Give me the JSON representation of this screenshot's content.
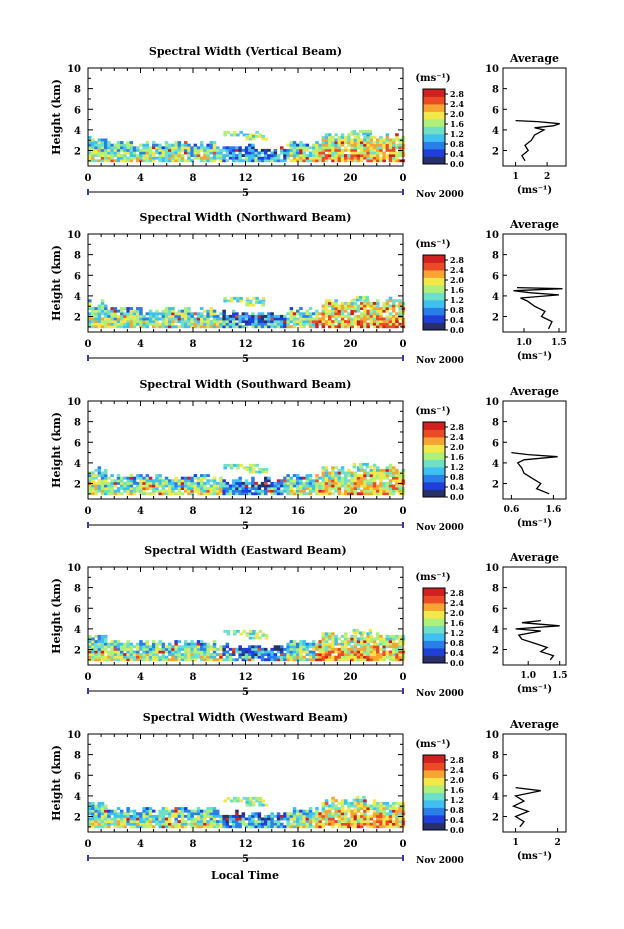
{
  "x_axis_label": "Local Time",
  "date_label": "Nov 2000",
  "day_marker": "5",
  "height_label": "Height (km)",
  "avg_title": "Average",
  "avg_unit": "(ms⁻¹)",
  "colorbar_unit": "(ms⁻¹)",
  "colorbar_ticks": [
    "2.8",
    "2.4",
    "2.0",
    "1.6",
    "1.2",
    "0.8",
    "0.4",
    "0.0"
  ],
  "colors": {
    "colormap": [
      "#28306c",
      "#1f3fd8",
      "#2a7ee8",
      "#3fc0f0",
      "#6fe0c8",
      "#aef07a",
      "#f3e84a",
      "#f7a433",
      "#ea4a25",
      "#d02020"
    ]
  },
  "chart_data": [
    {
      "type": "heatmap",
      "title": "Spectral Width (Vertical Beam)",
      "xticks": [
        "0",
        "4",
        "8",
        "12",
        "16",
        "20",
        "0"
      ],
      "yticks": [
        "2",
        "4",
        "6",
        "8",
        "10"
      ],
      "xlim": [
        0,
        24
      ],
      "ylim": [
        0.5,
        10
      ],
      "colorbar_range": [
        0,
        3.0
      ],
      "avg_xticks": [
        "1",
        "2"
      ],
      "avg_xlim": [
        0.6,
        2.6
      ],
      "avg_profile": [
        [
          1.3,
          1
        ],
        [
          1.2,
          1.5
        ],
        [
          1.4,
          2
        ],
        [
          1.3,
          2.5
        ],
        [
          1.5,
          3
        ],
        [
          1.6,
          3.5
        ],
        [
          1.9,
          4.0
        ],
        [
          1.6,
          4.2
        ],
        [
          2.2,
          4.4
        ],
        [
          2.4,
          4.6
        ],
        [
          1.7,
          4.8
        ],
        [
          1.0,
          4.9
        ]
      ]
    },
    {
      "type": "heatmap",
      "title": "Spectral Width (Northward Beam)",
      "xticks": [
        "0",
        "4",
        "8",
        "12",
        "16",
        "20",
        "0"
      ],
      "yticks": [
        "2",
        "4",
        "6",
        "8",
        "10"
      ],
      "xlim": [
        0,
        24
      ],
      "ylim": [
        0.5,
        10
      ],
      "colorbar_range": [
        0,
        3.0
      ],
      "avg_xticks": [
        "1.0",
        "1.5"
      ],
      "avg_xlim": [
        0.7,
        1.6
      ],
      "avg_profile": [
        [
          1.35,
          0.8
        ],
        [
          1.4,
          1.5
        ],
        [
          1.25,
          2.0
        ],
        [
          1.3,
          2.5
        ],
        [
          1.15,
          3.0
        ],
        [
          1.05,
          3.5
        ],
        [
          0.95,
          3.8
        ],
        [
          1.5,
          4.1
        ],
        [
          1.1,
          4.3
        ],
        [
          0.85,
          4.5
        ],
        [
          1.55,
          4.7
        ],
        [
          0.9,
          4.8
        ]
      ]
    },
    {
      "type": "heatmap",
      "title": "Spectral Width (Southward Beam)",
      "xticks": [
        "0",
        "4",
        "8",
        "12",
        "16",
        "20",
        "0"
      ],
      "yticks": [
        "2",
        "4",
        "6",
        "8",
        "10"
      ],
      "xlim": [
        0,
        24
      ],
      "ylim": [
        0.5,
        10
      ],
      "colorbar_range": [
        0,
        3.0
      ],
      "avg_xticks": [
        "0.6",
        "1.6"
      ],
      "avg_xlim": [
        0.4,
        1.9
      ],
      "avg_profile": [
        [
          1.5,
          1
        ],
        [
          1.2,
          1.5
        ],
        [
          1.3,
          2
        ],
        [
          1.1,
          2.5
        ],
        [
          0.9,
          3
        ],
        [
          0.85,
          3.5
        ],
        [
          0.75,
          4.0
        ],
        [
          0.9,
          4.3
        ],
        [
          1.7,
          4.6
        ],
        [
          1.0,
          4.8
        ],
        [
          0.6,
          5.0
        ]
      ]
    },
    {
      "type": "heatmap",
      "title": "Spectral Width (Eastward Beam)",
      "xticks": [
        "0",
        "4",
        "8",
        "12",
        "16",
        "20",
        "0"
      ],
      "yticks": [
        "2",
        "4",
        "6",
        "8",
        "10"
      ],
      "xlim": [
        0,
        24
      ],
      "ylim": [
        0.5,
        10
      ],
      "colorbar_range": [
        0,
        3.0
      ],
      "avg_xticks": [
        "1.0",
        "1.5"
      ],
      "avg_xlim": [
        0.6,
        1.6
      ],
      "avg_profile": [
        [
          1.35,
          1
        ],
        [
          1.4,
          1.4
        ],
        [
          1.2,
          1.8
        ],
        [
          1.3,
          2.2
        ],
        [
          1.1,
          2.6
        ],
        [
          0.9,
          3.0
        ],
        [
          0.85,
          3.4
        ],
        [
          1.2,
          3.8
        ],
        [
          0.8,
          4.0
        ],
        [
          1.5,
          4.3
        ],
        [
          0.9,
          4.6
        ],
        [
          1.2,
          4.8
        ]
      ]
    },
    {
      "type": "heatmap",
      "title": "Spectral Width (Westward Beam)",
      "xticks": [
        "0",
        "4",
        "8",
        "12",
        "16",
        "20",
        "0"
      ],
      "yticks": [
        "2",
        "4",
        "6",
        "8",
        "10"
      ],
      "xlim": [
        0,
        24
      ],
      "ylim": [
        0.5,
        10
      ],
      "colorbar_range": [
        0,
        3.0
      ],
      "avg_xticks": [
        "1",
        "2"
      ],
      "avg_xlim": [
        0.7,
        2.2
      ],
      "avg_profile": [
        [
          1.1,
          1
        ],
        [
          1.2,
          1.5
        ],
        [
          1.0,
          2
        ],
        [
          1.3,
          2.5
        ],
        [
          0.95,
          3
        ],
        [
          1.2,
          3.5
        ],
        [
          1.0,
          4.0
        ],
        [
          1.6,
          4.5
        ],
        [
          1.0,
          4.8
        ]
      ]
    }
  ]
}
